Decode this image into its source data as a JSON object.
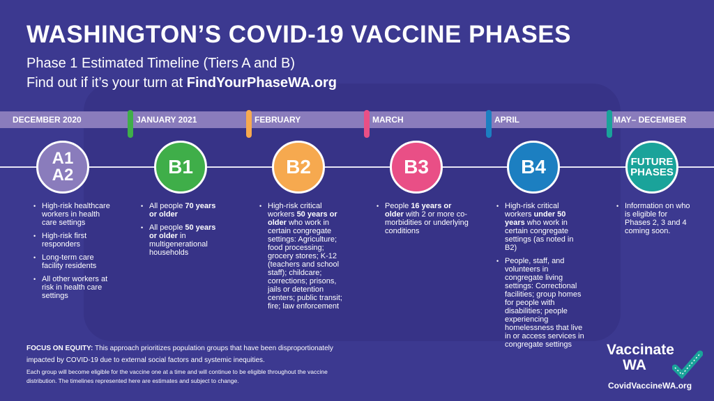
{
  "header": {
    "title": "WASHINGTON’S COVID-19 VACCINE PHASES",
    "subtitle": "Phase 1 Estimated Timeline (Tiers A and B)",
    "cta_prefix": "Find out if it’s your turn at ",
    "cta_link": "FindYourPhaseWA.org"
  },
  "colors": {
    "background": "#3c3990",
    "band": "#8a7cbc",
    "A": "#8a7cbc",
    "B1": "#3fae49",
    "B2": "#f6a94f",
    "B3": "#e94f86",
    "B4": "#1c7fc1",
    "future": "#1aa39a"
  },
  "phases": [
    {
      "month": "DECEMBER 2020",
      "label": [
        "A1",
        "A2"
      ],
      "color": "#8a7cbc",
      "marker": "",
      "bullets": [
        [
          {
            "t": "High-risk healthcare workers in health care settings"
          }
        ],
        [
          {
            "t": "High-risk first responders"
          }
        ],
        [
          {
            "t": "Long-term care facility residents"
          }
        ],
        [
          {
            "t": "All other workers at risk in health care settings"
          }
        ]
      ]
    },
    {
      "month": "JANUARY 2021",
      "label": [
        "B1"
      ],
      "color": "#3fae49",
      "marker": "#3fae49",
      "bullets": [
        [
          {
            "t": "All people "
          },
          {
            "t": "70 years or older",
            "b": true
          }
        ],
        [
          {
            "t": "All people "
          },
          {
            "t": "50 years or older",
            "b": true
          },
          {
            "t": " in multigenerational households"
          }
        ]
      ]
    },
    {
      "month": "FEBRUARY",
      "label": [
        "B2"
      ],
      "color": "#f6a94f",
      "marker": "#f6a94f",
      "bullets": [
        [
          {
            "t": "High-risk critical workers "
          },
          {
            "t": "50 years or older",
            "b": true
          },
          {
            "t": " who work in certain congregate settings: Agriculture; food processing; grocery stores; K-12 (teachers and school staff); childcare; corrections; prisons, jails or detention centers; public transit; fire; law enforcement"
          }
        ]
      ]
    },
    {
      "month": "MARCH",
      "label": [
        "B3"
      ],
      "color": "#e94f86",
      "marker": "#e94f86",
      "bullets": [
        [
          {
            "t": "People "
          },
          {
            "t": "16 years or older",
            "b": true
          },
          {
            "t": " with 2 or more co-morbidities or underlying conditions"
          }
        ]
      ]
    },
    {
      "month": "APRIL",
      "label": [
        "B4"
      ],
      "color": "#1c7fc1",
      "marker": "#1c7fc1",
      "bullets": [
        [
          {
            "t": "High-risk critical workers "
          },
          {
            "t": "under 50 years",
            "b": true
          },
          {
            "t": " who work in certain congregate settings (as noted in B2)"
          }
        ],
        [
          {
            "t": "People, staff, and volunteers in congregate living settings: Correctional facilities; group homes for people with disabilities; people experiencing homelessness that live in or access services in congregate settings"
          }
        ]
      ]
    },
    {
      "month": "MAY– DECEMBER",
      "label": [
        "FUTURE",
        "PHASES"
      ],
      "color": "#1aa39a",
      "marker": "#1aa39a",
      "bullets": [
        [
          {
            "t": "Information on who is eligible for Phases 2, 3 and 4 coming soon."
          }
        ]
      ]
    }
  ],
  "footer": {
    "equity_label": "FOCUS ON EQUITY:",
    "equity_text": " This approach prioritizes population groups that have been disproportionately impacted by COVID-19 due to external social factors and systemic inequities.",
    "note": "Each group will become eligible for the vaccine one at a time and will continue to be eligible throughout the vaccine distribution. The timelines represented here are estimates and subject to change.",
    "logo_line1": "Vaccinate",
    "logo_line2": "WA",
    "logo_icon": "bandage-check-icon",
    "url": "CovidVaccineWA.org"
  }
}
